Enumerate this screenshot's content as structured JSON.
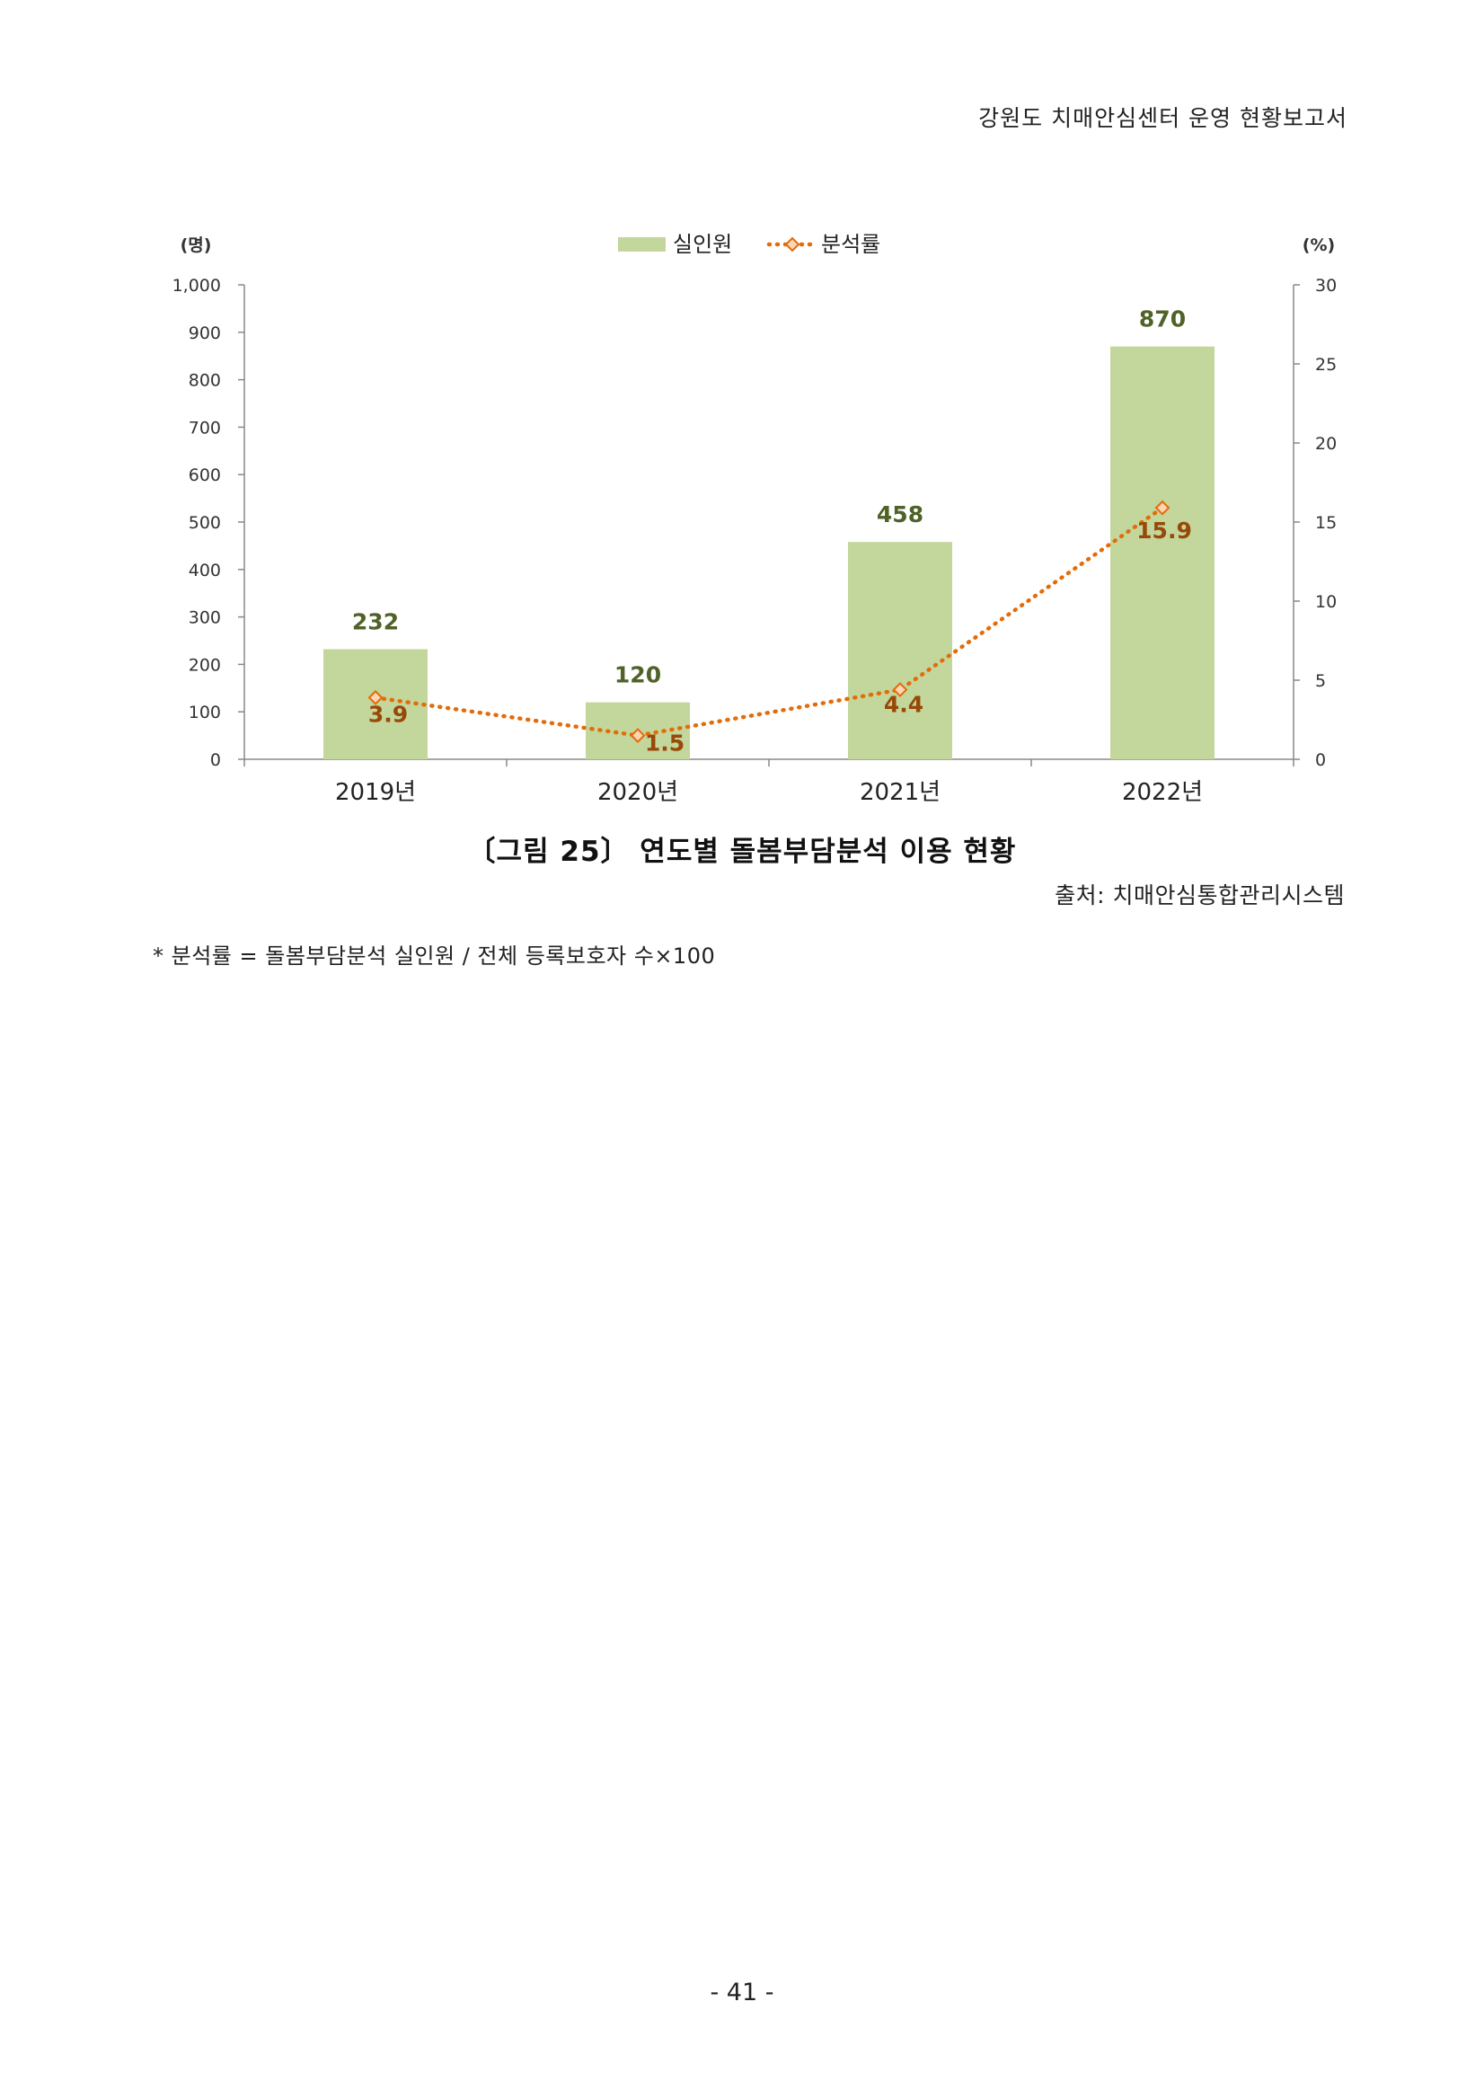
{
  "header": {
    "title": "강원도 치매안심센터 운영 현황보고서"
  },
  "chart_data": {
    "type": "bar",
    "categories": [
      "2019년",
      "2020년",
      "2021년",
      "2022년"
    ],
    "series": [
      {
        "name": "실인원",
        "type": "bar",
        "axis": "left",
        "values": [
          232,
          120,
          458,
          870
        ],
        "color": "#c3d69b",
        "label_color": "#4f6228"
      },
      {
        "name": "분석률",
        "type": "line",
        "axis": "right",
        "values": [
          3.9,
          1.5,
          4.4,
          15.9
        ],
        "color": "#e36c09",
        "label_color": "#984807"
      }
    ],
    "left_axis": {
      "unit_label": "(명)",
      "ylim": [
        0,
        1000
      ],
      "ticks": [
        0,
        100,
        200,
        300,
        400,
        500,
        600,
        700,
        800,
        900,
        1000
      ],
      "tick_labels": [
        "0",
        "100",
        "200",
        "300",
        "400",
        "500",
        "600",
        "700",
        "800",
        "900",
        "1,000"
      ]
    },
    "right_axis": {
      "unit_label": "(%)",
      "ylim": [
        0,
        30
      ],
      "ticks": [
        0,
        5,
        10,
        15,
        20,
        25,
        30
      ],
      "tick_labels": [
        "0",
        "5",
        "10",
        "15",
        "20",
        "25",
        "30"
      ]
    },
    "legend_position": "top-center",
    "grid": false
  },
  "caption": "〔그림 25〕 연도별 돌봄부담분석 이용 현황",
  "source": "출처: 치매안심통합관리시스템",
  "footnote": "* 분석률 = 돌봄부담분석 실인원 / 전체 등록보호자 수×100",
  "page_number": "- 41 -"
}
